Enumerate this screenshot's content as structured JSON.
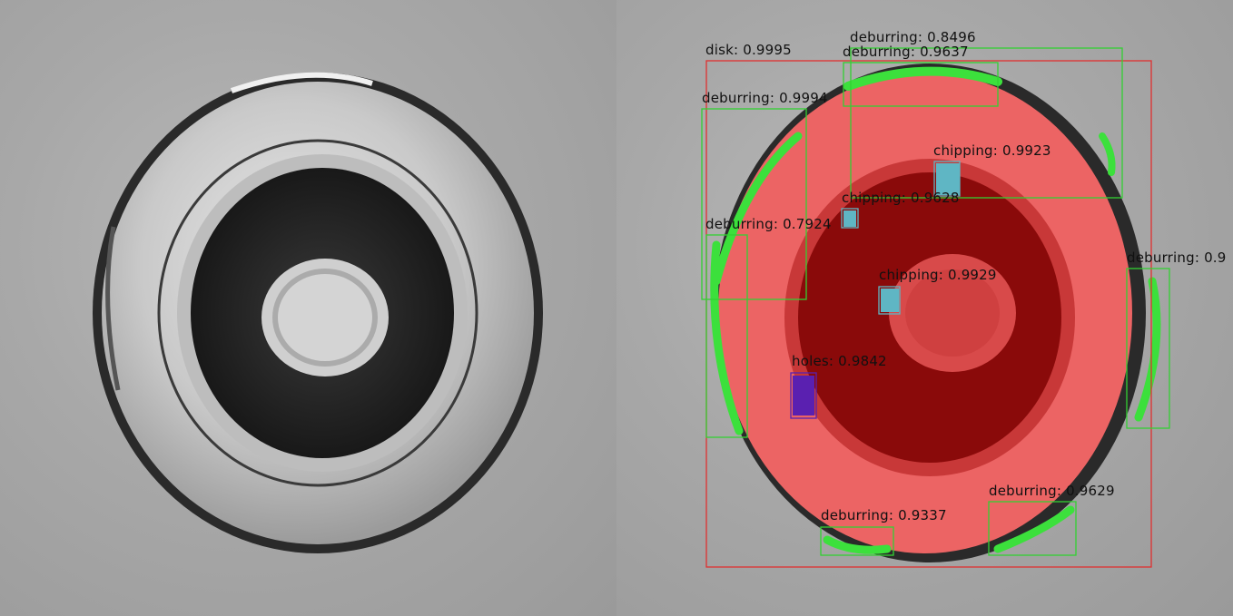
{
  "left_panel": {
    "title": ""
  },
  "right_panel": {
    "detections": [
      {
        "id": "disk",
        "label": "disk: 0.9995",
        "color": "#e03030"
      },
      {
        "id": "deburring-top-a",
        "label": "deburring: 0.8496",
        "color": "#32d032"
      },
      {
        "id": "deburring-top-b",
        "label": "deburring: 0.9637",
        "color": "#32d032"
      },
      {
        "id": "deburring-left-upper",
        "label": "deburring: 0.9994",
        "color": "#32d032"
      },
      {
        "id": "chipping-top",
        "label": "chipping: 0.9923",
        "color": "#5fb6c4"
      },
      {
        "id": "chipping-left",
        "label": "chipping: 0.9628",
        "color": "#5fb6c4"
      },
      {
        "id": "deburring-left-lower",
        "label": "deburring: 0.7924",
        "color": "#32d032"
      },
      {
        "id": "deburring-right",
        "label": "deburring: 0.9",
        "color": "#32d032"
      },
      {
        "id": "chipping-center",
        "label": "chipping: 0.9929",
        "color": "#5fb6c4"
      },
      {
        "id": "holes",
        "label": "holes: 0.9842",
        "color": "#5a20b0"
      },
      {
        "id": "deburring-bottom-right",
        "label": "deburring: 0.9629",
        "color": "#32d032"
      },
      {
        "id": "deburring-bottom",
        "label": "deburring: 0.9337",
        "color": "#32d032"
      }
    ]
  }
}
